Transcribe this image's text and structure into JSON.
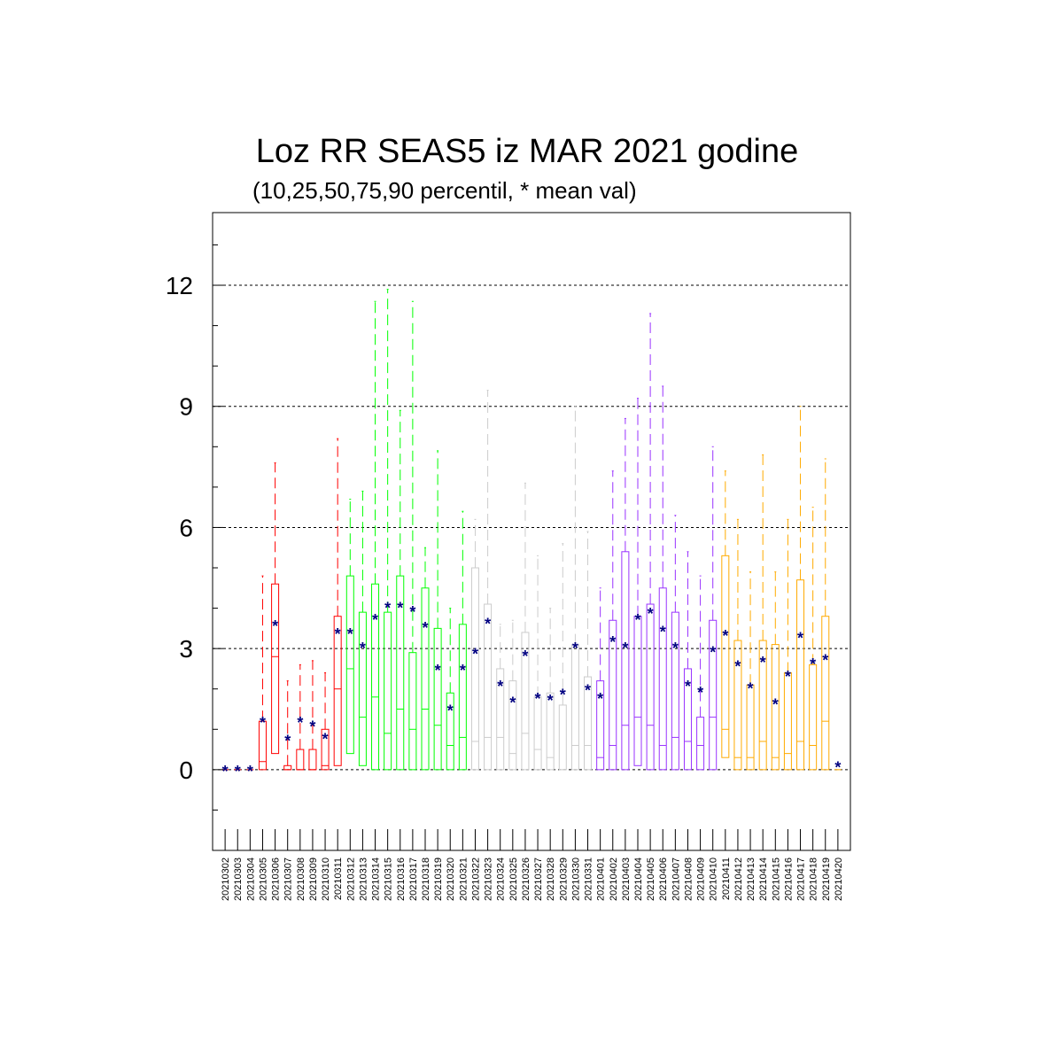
{
  "chart_data": {
    "type": "box",
    "title": "Loz RR SEAS5 iz MAR 2021 godine",
    "subtitle": "(10,25,50,75,90 percentil, * mean val)",
    "xlabel": "",
    "ylabel": "",
    "ylim": [
      -2,
      13.8
    ],
    "yticks": [
      0,
      3,
      6,
      9,
      12
    ],
    "grid": "horizontal dashed at major ticks",
    "categories": [
      "20210302",
      "20210303",
      "20210304",
      "20210305",
      "20210306",
      "20210307",
      "20210308",
      "20210309",
      "20210310",
      "20210311",
      "20210312",
      "20210313",
      "20210314",
      "20210315",
      "20210316",
      "20210317",
      "20210318",
      "20210319",
      "20210320",
      "20210321",
      "20210322",
      "20210323",
      "20210324",
      "20210325",
      "20210326",
      "20210327",
      "20210328",
      "20210329",
      "20210330",
      "20210331",
      "20210401",
      "20210402",
      "20210403",
      "20210404",
      "20210405",
      "20210406",
      "20210407",
      "20210408",
      "20210409",
      "20210410",
      "20210411",
      "20210412",
      "20210413",
      "20210414",
      "20210415",
      "20210416",
      "20210417",
      "20210418",
      "20210419",
      "20210420"
    ],
    "group_colors": [
      "#ff0000",
      "#00ff00",
      "#cccccc",
      "#9933ff",
      "#ffaa00"
    ],
    "mean_color": "#000080",
    "boxes": [
      {
        "g": 0,
        "p10": 0,
        "p25": 0,
        "p50": 0,
        "p75": 0,
        "p90": 0,
        "mean": 0
      },
      {
        "g": 0,
        "p10": 0,
        "p25": 0,
        "p50": 0,
        "p75": 0,
        "p90": 0,
        "mean": 0
      },
      {
        "g": 0,
        "p10": 0,
        "p25": 0,
        "p50": 0,
        "p75": 0,
        "p90": 0,
        "mean": 0
      },
      {
        "g": 0,
        "p10": 0,
        "p25": 0,
        "p50": 0.2,
        "p75": 1.2,
        "p90": 4.8,
        "mean": 1.2
      },
      {
        "g": 0,
        "p10": 0,
        "p25": 0.4,
        "p50": 2.8,
        "p75": 4.6,
        "p90": 7.6,
        "mean": 3.6
      },
      {
        "g": 0,
        "p10": 0,
        "p25": 0,
        "p50": 0,
        "p75": 0.1,
        "p90": 2.2,
        "mean": 0.75
      },
      {
        "g": 0,
        "p10": 0,
        "p25": 0,
        "p50": 0,
        "p75": 0.5,
        "p90": 2.6,
        "mean": 1.2
      },
      {
        "g": 0,
        "p10": 0,
        "p25": 0,
        "p50": 0,
        "p75": 0.5,
        "p90": 2.7,
        "mean": 1.1
      },
      {
        "g": 0,
        "p10": 0,
        "p25": 0,
        "p50": 0.1,
        "p75": 1.0,
        "p90": 2.4,
        "mean": 0.8
      },
      {
        "g": 0,
        "p10": 0,
        "p25": 0.1,
        "p50": 2.0,
        "p75": 3.8,
        "p90": 8.2,
        "mean": 3.4
      },
      {
        "g": 1,
        "p10": 0,
        "p25": 0.4,
        "p50": 2.5,
        "p75": 4.8,
        "p90": 6.7,
        "mean": 3.4
      },
      {
        "g": 1,
        "p10": 0,
        "p25": 0.1,
        "p50": 1.3,
        "p75": 3.9,
        "p90": 6.9,
        "mean": 3.05
      },
      {
        "g": 1,
        "p10": 0,
        "p25": 0,
        "p50": 1.8,
        "p75": 4.6,
        "p90": 11.6,
        "mean": 3.75
      },
      {
        "g": 1,
        "p10": 0,
        "p25": 0,
        "p50": 0.9,
        "p75": 3.9,
        "p90": 11.9,
        "mean": 4.05
      },
      {
        "g": 1,
        "p10": 0,
        "p25": 0,
        "p50": 1.5,
        "p75": 4.8,
        "p90": 8.9,
        "mean": 4.05
      },
      {
        "g": 1,
        "p10": 0,
        "p25": 0,
        "p50": 1.0,
        "p75": 2.9,
        "p90": 11.6,
        "mean": 3.95
      },
      {
        "g": 1,
        "p10": 0,
        "p25": 0,
        "p50": 1.5,
        "p75": 4.5,
        "p90": 5.5,
        "mean": 3.55
      },
      {
        "g": 1,
        "p10": 0,
        "p25": 0,
        "p50": 1.1,
        "p75": 3.5,
        "p90": 7.9,
        "mean": 2.5
      },
      {
        "g": 1,
        "p10": 0,
        "p25": 0,
        "p50": 0.6,
        "p75": 1.9,
        "p90": 4.0,
        "mean": 1.5
      },
      {
        "g": 1,
        "p10": 0,
        "p25": 0,
        "p50": 0.8,
        "p75": 3.6,
        "p90": 6.4,
        "mean": 2.5
      },
      {
        "g": 2,
        "p10": 0,
        "p25": 0,
        "p50": 0.7,
        "p75": 5.0,
        "p90": 6.2,
        "mean": 2.9
      },
      {
        "g": 2,
        "p10": 0,
        "p25": 0,
        "p50": 0.8,
        "p75": 4.1,
        "p90": 9.4,
        "mean": 3.65
      },
      {
        "g": 2,
        "p10": 0,
        "p25": 0,
        "p50": 0.8,
        "p75": 2.5,
        "p90": 3.6,
        "mean": 2.1
      },
      {
        "g": 2,
        "p10": 0,
        "p25": 0,
        "p50": 0.4,
        "p75": 2.2,
        "p90": 3.7,
        "mean": 1.7
      },
      {
        "g": 2,
        "p10": 0,
        "p25": 0,
        "p50": 0.9,
        "p75": 3.4,
        "p90": 7.1,
        "mean": 2.85
      },
      {
        "g": 2,
        "p10": 0,
        "p25": 0,
        "p50": 0.5,
        "p75": 1.8,
        "p90": 5.3,
        "mean": 1.8
      },
      {
        "g": 2,
        "p10": 0,
        "p25": 0,
        "p50": 0.3,
        "p75": 1.9,
        "p90": 4.0,
        "mean": 1.75
      },
      {
        "g": 2,
        "p10": 0,
        "p25": 0,
        "p50": 0,
        "p75": 1.6,
        "p90": 5.6,
        "mean": 1.9
      },
      {
        "g": 2,
        "p10": 0,
        "p25": 0,
        "p50": 0.6,
        "p75": 3.1,
        "p90": 9.0,
        "mean": 3.05
      },
      {
        "g": 2,
        "p10": 0,
        "p25": 0,
        "p50": 0.6,
        "p75": 2.3,
        "p90": 5.9,
        "mean": 2.0
      },
      {
        "g": 3,
        "p10": 0,
        "p25": 0,
        "p50": 0.3,
        "p75": 2.2,
        "p90": 4.5,
        "mean": 1.8
      },
      {
        "g": 3,
        "p10": 0,
        "p25": 0,
        "p50": 0.6,
        "p75": 3.7,
        "p90": 7.4,
        "mean": 3.2
      },
      {
        "g": 3,
        "p10": 0,
        "p25": 0,
        "p50": 1.1,
        "p75": 5.4,
        "p90": 8.7,
        "mean": 3.05
      },
      {
        "g": 3,
        "p10": 0,
        "p25": 0.1,
        "p50": 1.3,
        "p75": 3.8,
        "p90": 9.2,
        "mean": 3.75
      },
      {
        "g": 3,
        "p10": 0,
        "p25": 0,
        "p50": 1.1,
        "p75": 4.1,
        "p90": 11.3,
        "mean": 3.9
      },
      {
        "g": 3,
        "p10": 0,
        "p25": 0,
        "p50": 0.6,
        "p75": 4.5,
        "p90": 9.5,
        "mean": 3.45
      },
      {
        "g": 3,
        "p10": 0,
        "p25": 0,
        "p50": 0.8,
        "p75": 3.9,
        "p90": 6.3,
        "mean": 3.05
      },
      {
        "g": 3,
        "p10": 0,
        "p25": 0,
        "p50": 0.7,
        "p75": 2.5,
        "p90": 5.4,
        "mean": 2.1
      },
      {
        "g": 3,
        "p10": 0,
        "p25": 0,
        "p50": 0.6,
        "p75": 1.3,
        "p90": 4.8,
        "mean": 1.95
      },
      {
        "g": 3,
        "p10": 0,
        "p25": 0,
        "p50": 1.3,
        "p75": 3.7,
        "p90": 8.0,
        "mean": 2.95
      },
      {
        "g": 4,
        "p10": 0,
        "p25": 0.3,
        "p50": 1.0,
        "p75": 5.3,
        "p90": 7.4,
        "mean": 3.35
      },
      {
        "g": 4,
        "p10": 0,
        "p25": 0,
        "p50": 0.3,
        "p75": 3.2,
        "p90": 6.2,
        "mean": 2.6
      },
      {
        "g": 4,
        "p10": 0,
        "p25": 0,
        "p50": 0.3,
        "p75": 2.1,
        "p90": 4.9,
        "mean": 2.05
      },
      {
        "g": 4,
        "p10": 0,
        "p25": 0,
        "p50": 0.7,
        "p75": 3.2,
        "p90": 7.8,
        "mean": 2.7
      },
      {
        "g": 4,
        "p10": 0,
        "p25": 0,
        "p50": 0.3,
        "p75": 3.1,
        "p90": 4.9,
        "mean": 1.65
      },
      {
        "g": 4,
        "p10": 0,
        "p25": 0,
        "p50": 0.4,
        "p75": 2.4,
        "p90": 6.2,
        "mean": 2.35
      },
      {
        "g": 4,
        "p10": 0,
        "p25": 0,
        "p50": 0.7,
        "p75": 4.7,
        "p90": 9.0,
        "mean": 3.3
      },
      {
        "g": 4,
        "p10": 0,
        "p25": 0,
        "p50": 0.6,
        "p75": 2.6,
        "p90": 6.5,
        "mean": 2.65
      },
      {
        "g": 4,
        "p10": 0,
        "p25": 0,
        "p50": 1.2,
        "p75": 3.8,
        "p90": 7.7,
        "mean": 2.75
      },
      {
        "g": 4,
        "p10": 0,
        "p25": 0,
        "p50": 0,
        "p75": 0,
        "p90": 0,
        "mean": 0.1
      }
    ]
  }
}
